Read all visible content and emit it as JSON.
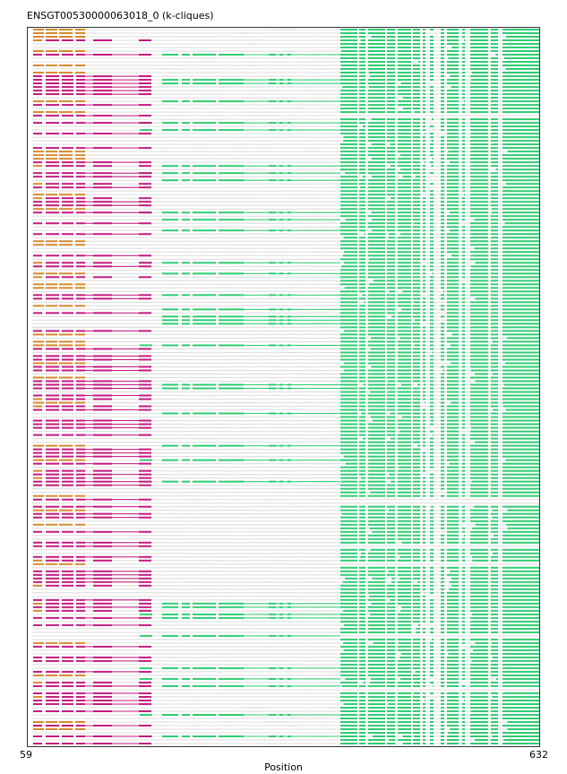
{
  "chart_data": {
    "type": "alignment",
    "title": "ENSGT00530000063018_0 (k-cliques)",
    "xlabel": "Position",
    "xlim": [
      59,
      632
    ],
    "x_tick_labels": [
      "59",
      "632"
    ],
    "n_sequences": 200,
    "colors": {
      "gap": "#dcdcdc",
      "clique_magenta": "#c2187f",
      "clique_orange": "#d4892a",
      "clique_green": "#2ecc71",
      "frame": "#333333"
    },
    "segments_template": {
      "main_green_block": [
        [
          380,
          399
        ],
        [
          401,
          408
        ],
        [
          411,
          430
        ],
        [
          432,
          441
        ],
        [
          444,
          459
        ],
        [
          461,
          469
        ],
        [
          472,
          475
        ],
        [
          480,
          484
        ],
        [
          492,
          496
        ],
        [
          499,
          512
        ],
        [
          516,
          519
        ],
        [
          525,
          545
        ],
        [
          548,
          556
        ],
        [
          561,
          602
        ]
      ],
      "mid_green_block": [
        [
          156,
          170
        ],
        [
          181,
          199
        ],
        [
          203,
          212
        ],
        [
          215,
          241
        ],
        [
          244,
          272
        ],
        [
          300,
          308
        ],
        [
          312,
          316
        ],
        [
          321,
          325
        ]
      ],
      "left_magenta": [
        [
          37,
          47
        ],
        [
          51,
          66
        ],
        [
          69,
          82
        ],
        [
          85,
          95
        ],
        [
          104,
          125
        ],
        [
          155,
          169
        ]
      ],
      "left_orange": [
        [
          37,
          49
        ],
        [
          51,
          64
        ],
        [
          66,
          81
        ],
        [
          84,
          95
        ]
      ]
    }
  }
}
